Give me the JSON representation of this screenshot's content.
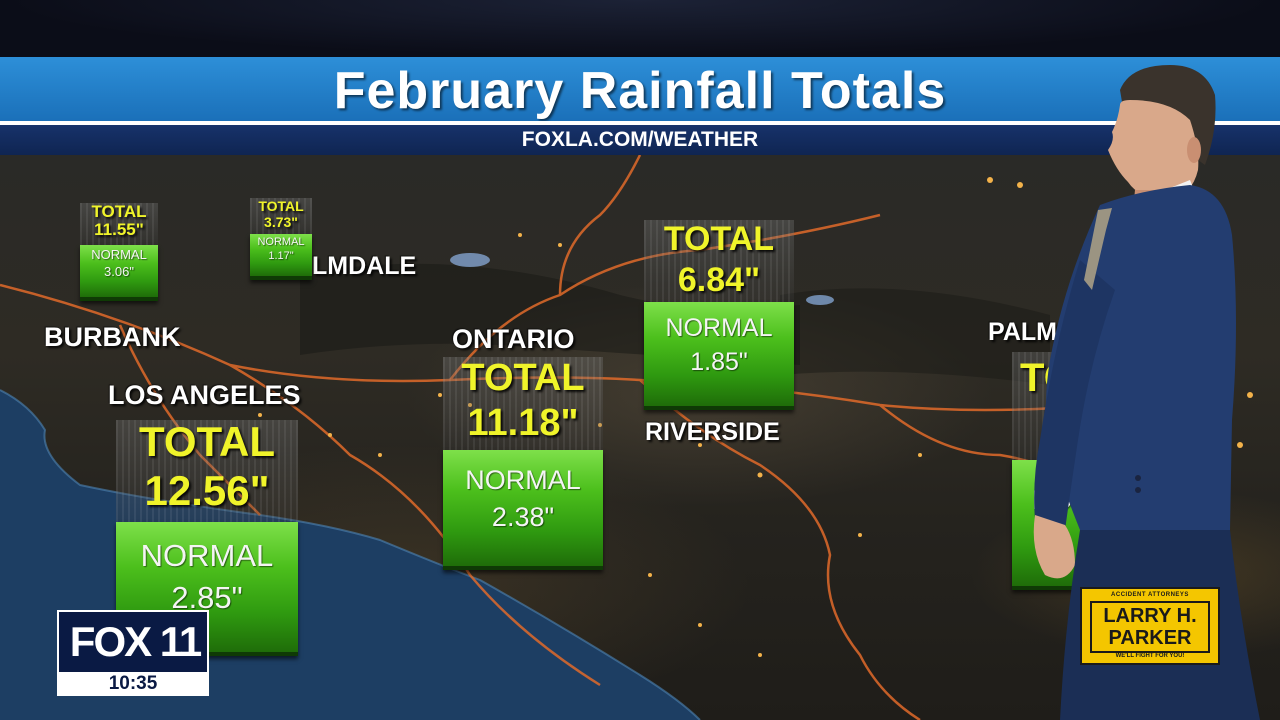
{
  "header": {
    "title": "February Rainfall Totals",
    "subtitle": "FOXLA.COM/WEATHER"
  },
  "cities": {
    "burbank": "BURBANK",
    "los_angeles": "LOS ANGELES",
    "ontario": "ONTARIO",
    "riverside": "RIVERSIDE",
    "palmdale": "LMDALE",
    "palm": "PALM"
  },
  "rainfall": {
    "los_angeles": {
      "total_label": "TOTAL",
      "total": "12.56\"",
      "normal_label": "NORMAL",
      "normal": "2.85\""
    },
    "ontario": {
      "total_label": "TOTAL",
      "total": "11.18\"",
      "normal_label": "NORMAL",
      "normal": "2.38\""
    },
    "riverside": {
      "total_label": "TOTAL",
      "total": "6.84\"",
      "normal_label": "NORMAL",
      "normal": "1.85\""
    },
    "far_left": {
      "total_label": "TOTAL",
      "total": "11.55\"",
      "normal_label": "NORMAL",
      "normal": "3.06\""
    },
    "palmdale": {
      "total_label": "TOTAL",
      "total": "3.73\"",
      "normal_label": "NORMAL",
      "normal": "1.17\""
    },
    "palm_springs": {
      "total_label": "TO",
      "normal_label": "NO"
    }
  },
  "logo": {
    "station": "FOX 11",
    "time": "10:35"
  },
  "sponsor": {
    "top_line": "ACCIDENT ATTORNEYS",
    "name": "LARRY H. PARKER",
    "tagline": "WE'LL FIGHT FOR YOU!"
  },
  "colors": {
    "title_bar": "#2d8fd8",
    "sub_bar": "#17326a",
    "total_text": "#f0f42a",
    "normal_box": "#4cbf1c",
    "sponsor": "#f4c600"
  }
}
